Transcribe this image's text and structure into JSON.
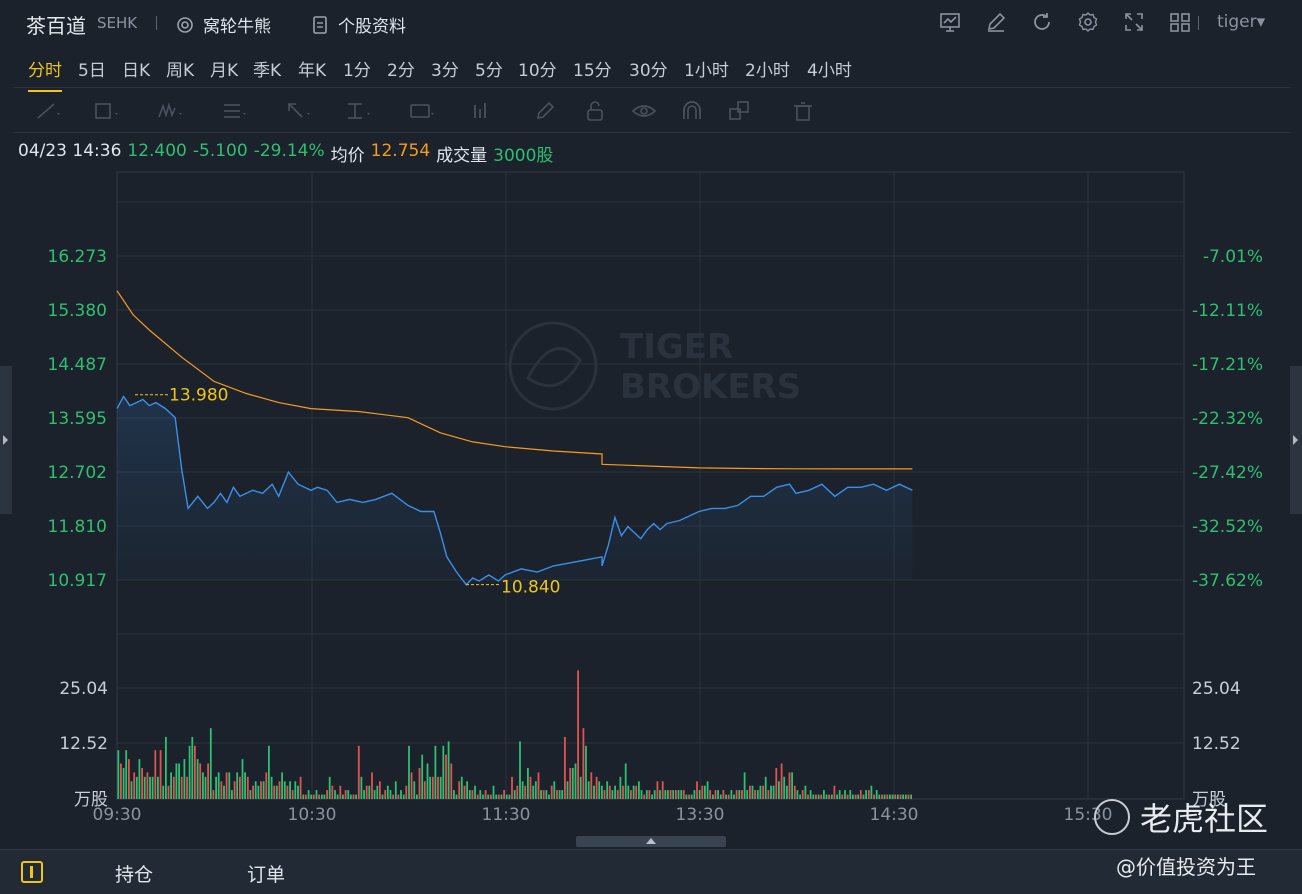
{
  "header": {
    "name": "茶百道",
    "code": "SEHK",
    "warrants_label": "窝轮牛熊",
    "profile_label": "个股资料",
    "user": "tiger",
    "user_caret": "▾"
  },
  "periods": [
    "分时",
    "5日",
    "日K",
    "周K",
    "月K",
    "季K",
    "年K",
    "1分",
    "2分",
    "3分",
    "5分",
    "10分",
    "15分",
    "30分",
    "1小时",
    "2小时",
    "4小时"
  ],
  "active_period": "分时",
  "quote": {
    "time": "04/23 14:36",
    "price": "12.400",
    "change": "-5.100",
    "change_pct": "-29.14%",
    "avg_label": "均价",
    "avg": "12.754",
    "vol_label": "成交量",
    "vol": "3000股"
  },
  "colors": {
    "accent": "#f0c51a",
    "up": "#e0534f",
    "down": "#2fbf71",
    "price_line": "#3a8fe8",
    "avg_line": "#f59b1e"
  },
  "watermark": {
    "brand_line1": "TIGER",
    "brand_line2": "BROKERS"
  },
  "chart_data": {
    "type": "line",
    "price_axis_left": [
      "16.273",
      "15.380",
      "14.487",
      "13.595",
      "12.702",
      "11.810",
      "10.917"
    ],
    "price_axis_right": [
      "-7.01%",
      "-12.11%",
      "-17.21%",
      "-22.32%",
      "-27.42%",
      "-32.52%",
      "-37.62%"
    ],
    "volume_axis_left": [
      "25.04",
      "12.52",
      "万股"
    ],
    "volume_axis_right": [
      "25.04",
      "12.52",
      "万股"
    ],
    "time_axis": [
      "09:30",
      "10:30",
      "11:30",
      "13:30",
      "14:30",
      "15:30"
    ],
    "ylim": [
      10.917,
      16.273
    ],
    "volume_ylim": [
      0,
      25.04
    ],
    "high_marker": {
      "value": 13.98,
      "label": "13.980"
    },
    "low_marker": {
      "value": 10.84,
      "label": "10.840"
    },
    "series": [
      {
        "name": "价格",
        "times": [
          "09:30",
          "09:32",
          "09:34",
          "09:36",
          "09:38",
          "09:40",
          "09:42",
          "09:45",
          "09:48",
          "09:50",
          "09:52",
          "09:55",
          "09:58",
          "10:00",
          "10:02",
          "10:04",
          "10:06",
          "10:08",
          "10:10",
          "10:12",
          "10:15",
          "10:18",
          "10:20",
          "10:23",
          "10:26",
          "10:28",
          "10:30",
          "10:32",
          "10:35",
          "10:38",
          "10:42",
          "10:46",
          "10:50",
          "10:55",
          "11:00",
          "11:04",
          "11:08",
          "11:10",
          "11:12",
          "11:15",
          "11:18",
          "11:20",
          "11:22",
          "11:25",
          "11:28",
          "11:30",
          "11:35",
          "11:40",
          "11:45",
          "11:50",
          "11:55",
          "12:00",
          "13:00",
          "13:02",
          "13:04",
          "13:06",
          "13:08",
          "13:10",
          "13:12",
          "13:14",
          "13:16",
          "13:18",
          "13:20",
          "13:24",
          "13:28",
          "13:30",
          "13:34",
          "13:38",
          "13:42",
          "13:46",
          "13:50",
          "13:54",
          "13:58",
          "14:00",
          "14:04",
          "14:08",
          "14:12",
          "14:16",
          "14:20",
          "14:24",
          "14:28",
          "14:32",
          "14:36"
        ],
        "values": [
          13.75,
          13.95,
          13.8,
          13.85,
          13.9,
          13.8,
          13.85,
          13.75,
          13.6,
          12.75,
          12.1,
          12.3,
          12.1,
          12.2,
          12.35,
          12.2,
          12.45,
          12.3,
          12.35,
          12.4,
          12.35,
          12.5,
          12.3,
          12.7,
          12.5,
          12.45,
          12.4,
          12.45,
          12.4,
          12.2,
          12.25,
          12.2,
          12.25,
          12.35,
          12.15,
          12.05,
          12.05,
          11.7,
          11.3,
          11.05,
          10.84,
          10.95,
          10.9,
          11.0,
          10.9,
          11.0,
          11.1,
          11.05,
          11.15,
          11.2,
          11.25,
          11.3,
          11.15,
          11.5,
          11.95,
          11.65,
          11.8,
          11.7,
          11.6,
          11.75,
          11.85,
          11.75,
          11.85,
          11.9,
          12.0,
          12.05,
          12.1,
          12.1,
          12.15,
          12.3,
          12.3,
          12.45,
          12.5,
          12.35,
          12.4,
          12.5,
          12.3,
          12.45,
          12.45,
          12.5,
          12.4,
          12.5,
          12.4
        ]
      },
      {
        "name": "均价",
        "times": [
          "09:30",
          "09:35",
          "09:40",
          "09:50",
          "10:00",
          "10:10",
          "10:20",
          "10:30",
          "10:45",
          "11:00",
          "11:10",
          "11:20",
          "11:30",
          "11:45",
          "12:00",
          "13:00",
          "13:15",
          "13:30",
          "13:45",
          "14:00",
          "14:15",
          "14:36"
        ],
        "values": [
          15.7,
          15.3,
          15.05,
          14.6,
          14.2,
          14.0,
          13.85,
          13.75,
          13.7,
          13.6,
          13.35,
          13.2,
          13.12,
          13.05,
          13.0,
          12.83,
          12.8,
          12.77,
          12.76,
          12.755,
          12.754,
          12.754
        ]
      }
    ],
    "volume": {
      "name": "成交量",
      "unit": "万股",
      "values": [
        11,
        8,
        7,
        11,
        9,
        4,
        6,
        5,
        9,
        7,
        5,
        6,
        5,
        5,
        11,
        5,
        11,
        3,
        14,
        3,
        6,
        5,
        8,
        8,
        5,
        9,
        5,
        12,
        14,
        12,
        9,
        8,
        6,
        5,
        8,
        16,
        2,
        5,
        6,
        4,
        3,
        6,
        6,
        2,
        4,
        6,
        5,
        9,
        6,
        5,
        2,
        3,
        4,
        3,
        4,
        4,
        6,
        12,
        5,
        3,
        3,
        4,
        6,
        4,
        3,
        4,
        2,
        4,
        3,
        5,
        1,
        1,
        2,
        1,
        1,
        2,
        1,
        1,
        1,
        2,
        5,
        3,
        2,
        1,
        3,
        1,
        2,
        2,
        1,
        1,
        1,
        12,
        5,
        2,
        3,
        3,
        6,
        2,
        3,
        4,
        1,
        2,
        3,
        2,
        1,
        4,
        1,
        2,
        1,
        3,
        12,
        6,
        4,
        1,
        7,
        10,
        4,
        8,
        5,
        5,
        12,
        5,
        5,
        12,
        10,
        13,
        8,
        2,
        1,
        4,
        5,
        3,
        4,
        2,
        2,
        3,
        1,
        2,
        1,
        2,
        1,
        1,
        3,
        1,
        1,
        1,
        2,
        1,
        1,
        5,
        2,
        3,
        13,
        4,
        3,
        7,
        5,
        3,
        4,
        6,
        2,
        2,
        2,
        1,
        3,
        4,
        2,
        2,
        2,
        14,
        4,
        7,
        7,
        8,
        29,
        5,
        16,
        12,
        4,
        6,
        3,
        5,
        4,
        3,
        2,
        4,
        3,
        2,
        3,
        2,
        5,
        3,
        8,
        3,
        2,
        3,
        3,
        4,
        2,
        1,
        2,
        2,
        1,
        2,
        4,
        2,
        4,
        2,
        2,
        2,
        2,
        2,
        2,
        2,
        2,
        1,
        1,
        1,
        2,
        4,
        2,
        3,
        3,
        4,
        2,
        1,
        2,
        2,
        1,
        2,
        1,
        1,
        2,
        1,
        2,
        2,
        2,
        6,
        2,
        3,
        3,
        2,
        2,
        3,
        3,
        5,
        2,
        3,
        3,
        7,
        4,
        8,
        5,
        3,
        6,
        6,
        3,
        2,
        1,
        2,
        3,
        1,
        2,
        1,
        1,
        1,
        1,
        2,
        1,
        1,
        1,
        3,
        1,
        2,
        1,
        2,
        1,
        2,
        1,
        1,
        1,
        2,
        1,
        2,
        2,
        3,
        1,
        2,
        1,
        1,
        1,
        1,
        1,
        1,
        1,
        1,
        1,
        1,
        1,
        1,
        1
      ],
      "colors": []
    }
  }
}
